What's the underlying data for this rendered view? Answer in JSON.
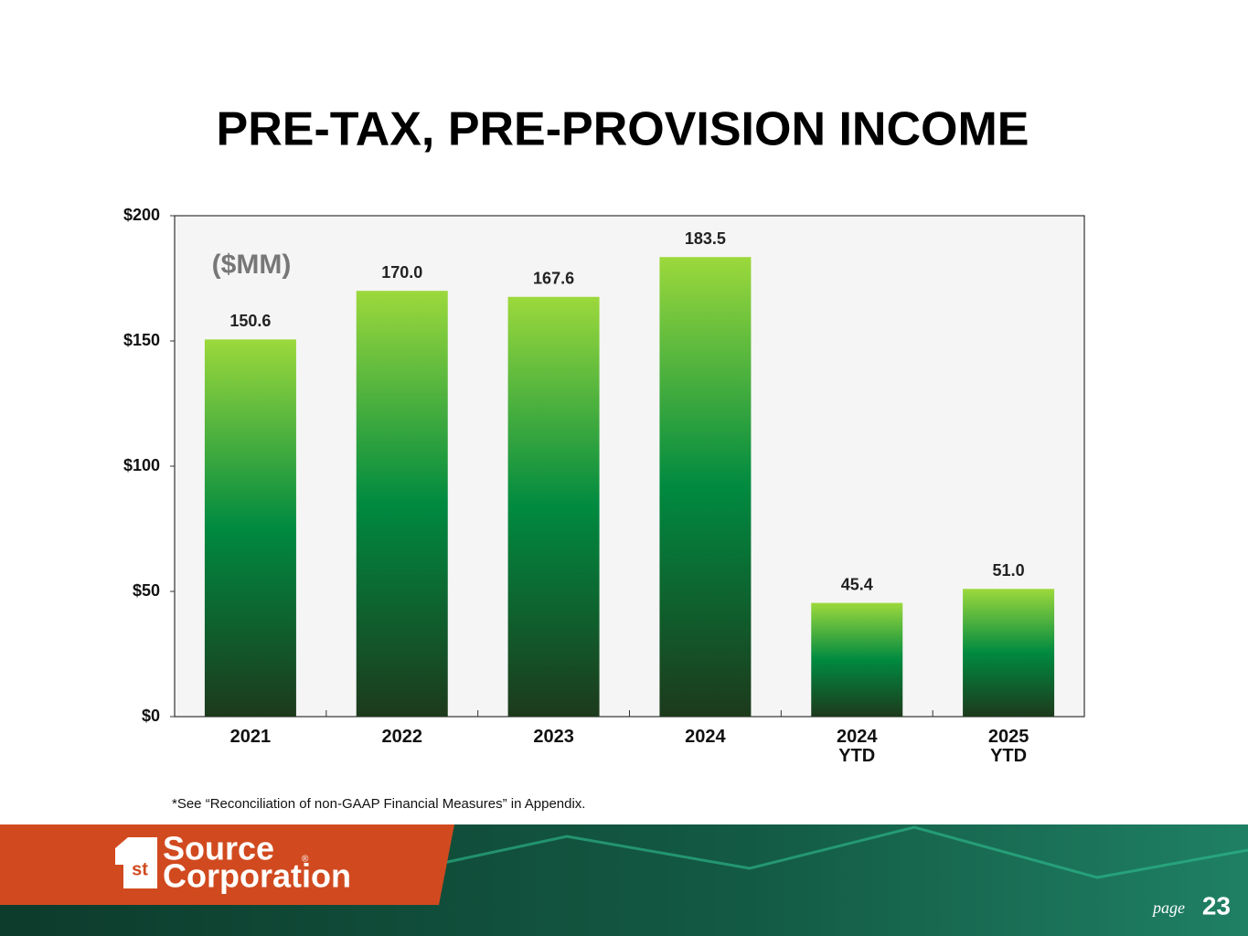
{
  "chart_data": {
    "type": "bar",
    "title": "PRE-TAX, PRE-PROVISION INCOME",
    "annotation": "($MM)",
    "categories": [
      "2021",
      "2022",
      "2023",
      "2024",
      "2024 YTD",
      "2025 YTD"
    ],
    "values": [
      150.6,
      170.0,
      167.6,
      183.5,
      45.4,
      51.0
    ],
    "value_labels": [
      "150.6",
      "170.0",
      "167.6",
      "183.5",
      "45.4",
      "51.0"
    ],
    "ylim": [
      0,
      200
    ],
    "yticks": [
      {
        "value": 0,
        "label": "$0"
      },
      {
        "value": 50,
        "label": "$50"
      },
      {
        "value": 100,
        "label": "$100"
      },
      {
        "value": 150,
        "label": "$150"
      },
      {
        "value": 200,
        "label": "$200"
      }
    ],
    "grid": false
  },
  "footnote": "*See “Reconciliation of non-GAAP Financial Measures” in Appendix.",
  "logo": {
    "mark": "st",
    "line1": "Source",
    "registered": "®",
    "line2": "Corporation"
  },
  "page": {
    "label": "page",
    "number": "23"
  }
}
